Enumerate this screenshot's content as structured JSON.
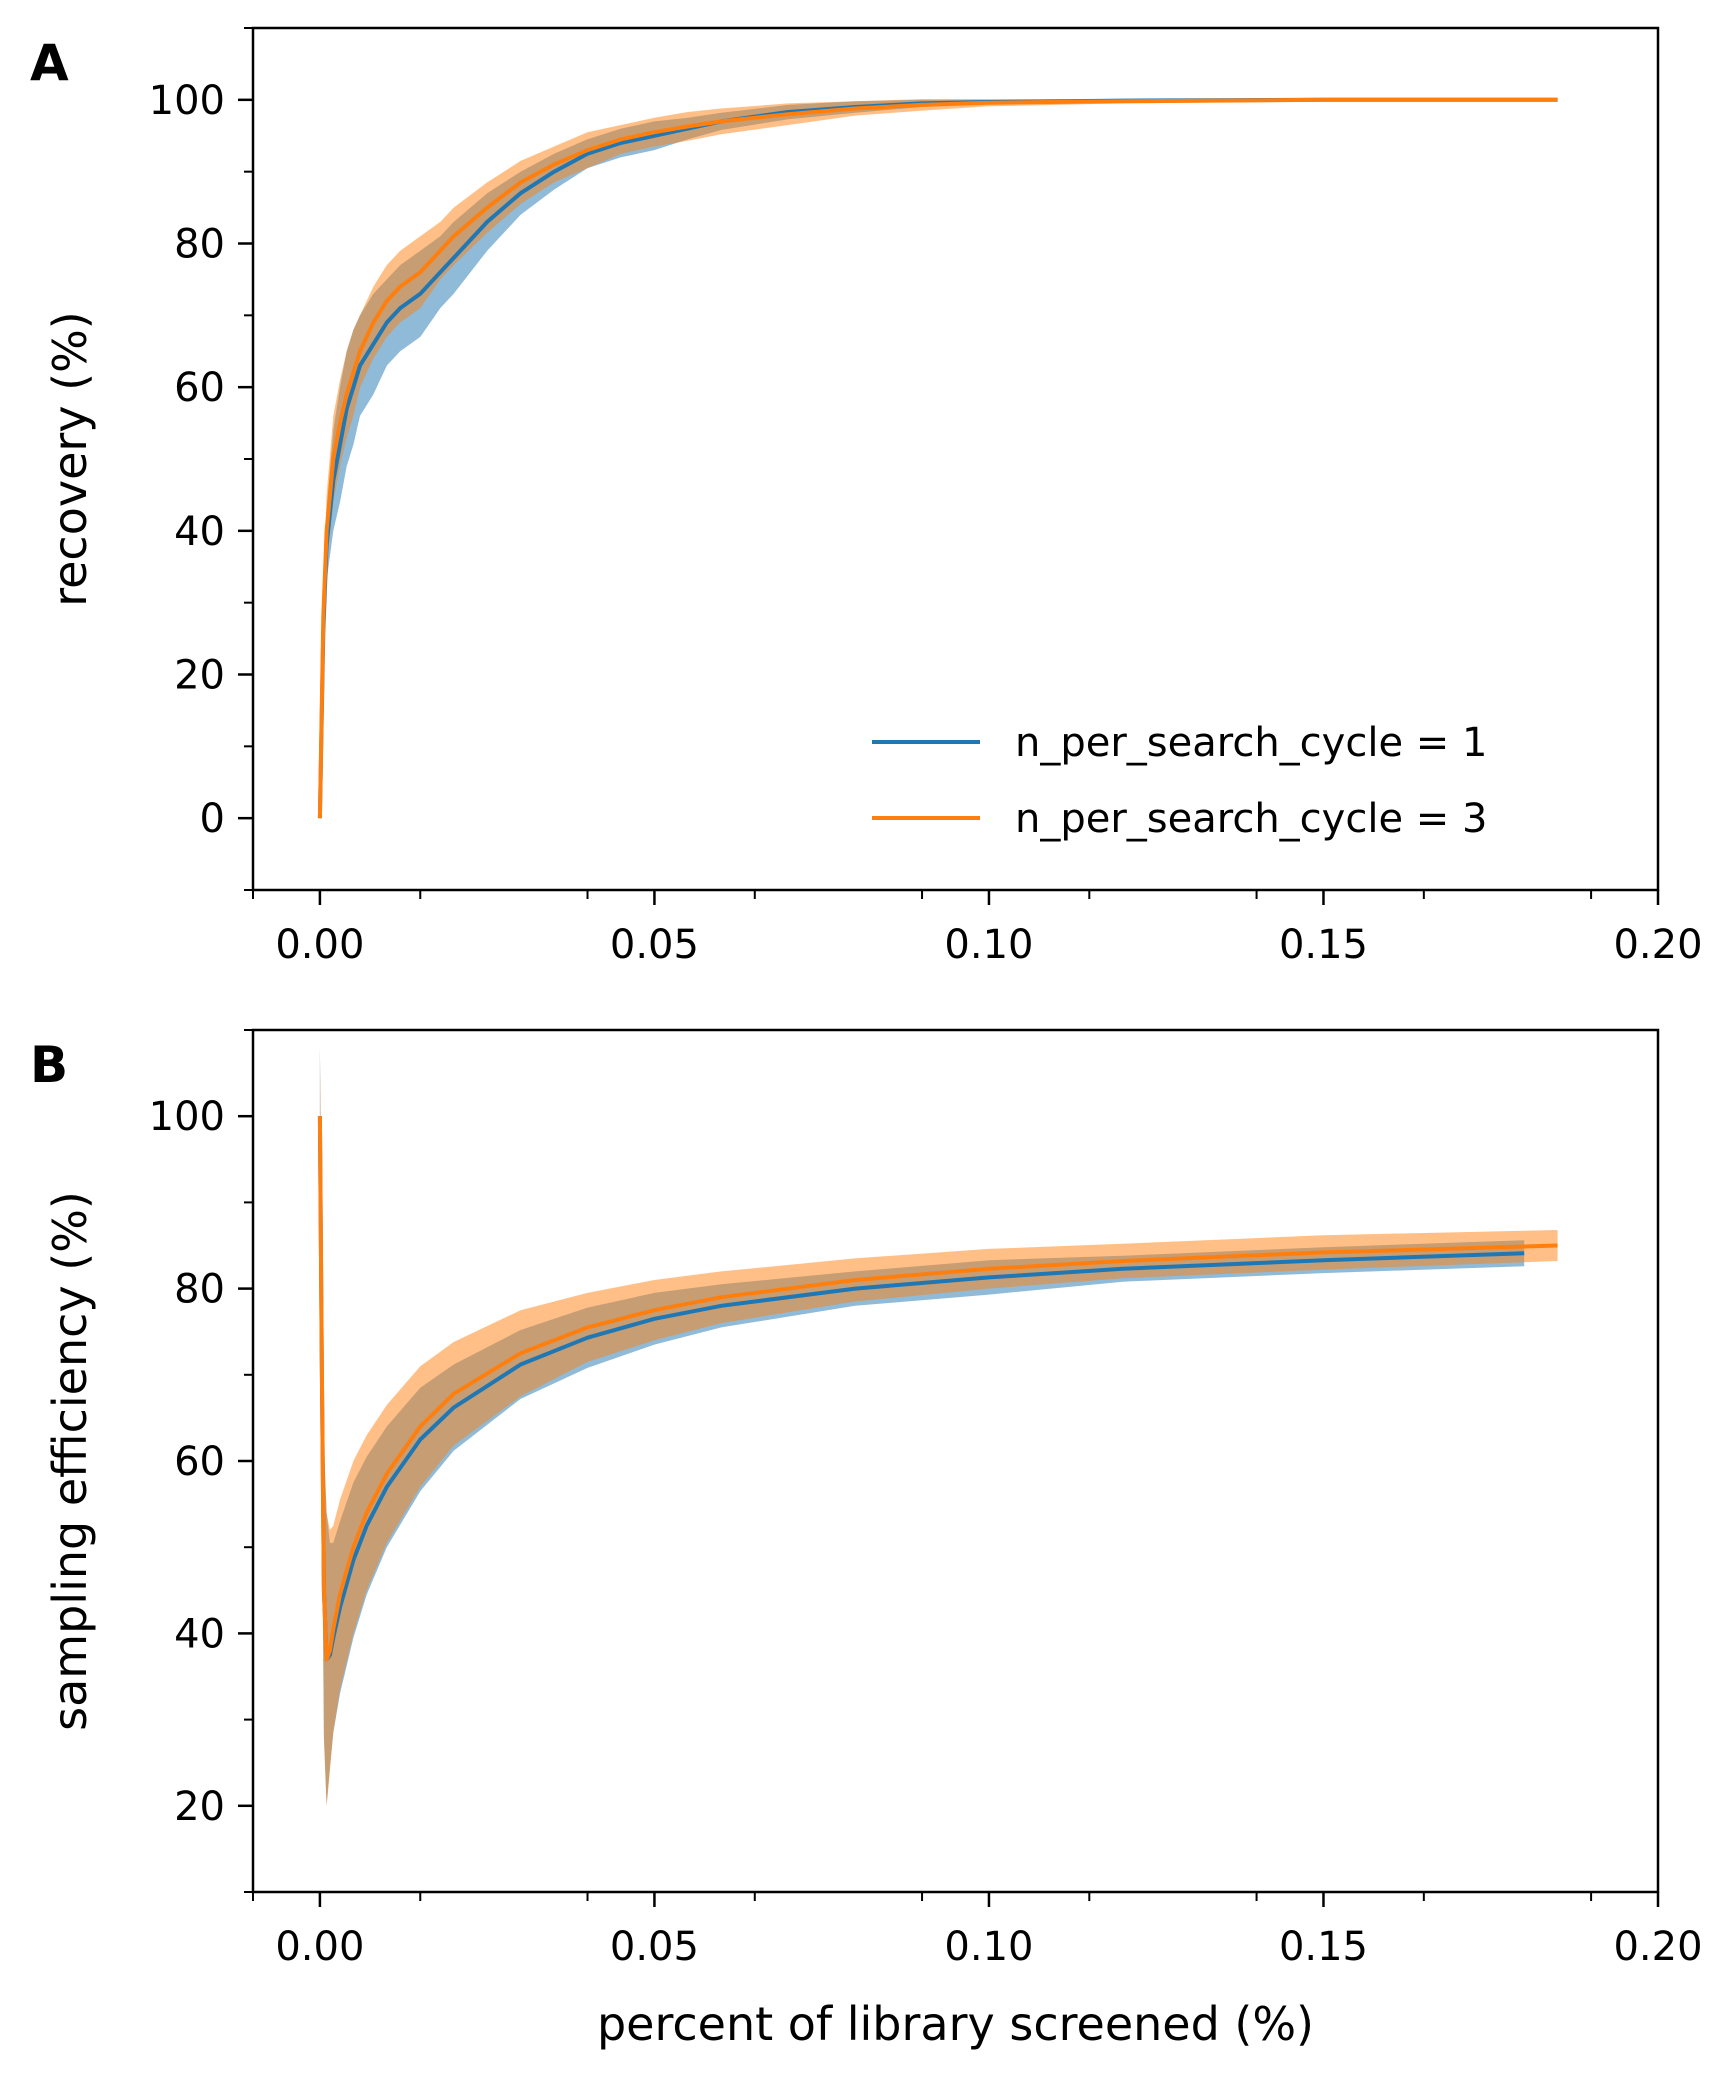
{
  "colors": {
    "series_1": "#1f77b4",
    "series_3": "#ff7f0e"
  },
  "chart_data": [
    {
      "panel_label": "A",
      "type": "line",
      "title": "",
      "xlabel": "",
      "ylabel": "recovery (%)",
      "xlim": [
        -0.01,
        0.2
      ],
      "ylim": [
        -10,
        110
      ],
      "xticks": [
        0.0,
        0.05,
        0.1,
        0.15,
        0.2
      ],
      "xtick_labels": [
        "0.00",
        "0.05",
        "0.10",
        "0.15",
        "0.20"
      ],
      "yticks": [
        0,
        20,
        40,
        60,
        80,
        100
      ],
      "ytick_labels": [
        "0",
        "20",
        "40",
        "60",
        "80",
        "100"
      ],
      "grid": false,
      "legend": {
        "placement": "lower-right",
        "entries": [
          "n_per_search_cycle = 1",
          "n_per_search_cycle = 3"
        ]
      },
      "series": [
        {
          "name": "n_per_search_cycle = 1",
          "color_key": "series_1",
          "x": [
            0.0,
            0.0005,
            0.001,
            0.002,
            0.003,
            0.004,
            0.005,
            0.006,
            0.008,
            0.01,
            0.012,
            0.015,
            0.018,
            0.02,
            0.025,
            0.03,
            0.035,
            0.04,
            0.045,
            0.05,
            0.055,
            0.06,
            0.07,
            0.08,
            0.09,
            0.1,
            0.12,
            0.15,
            0.185
          ],
          "y": [
            0,
            26,
            38,
            47,
            52,
            57,
            60,
            63,
            66,
            69,
            71,
            73,
            76,
            78,
            83,
            87,
            90,
            92.5,
            94,
            95,
            96,
            97,
            98.3,
            99,
            99.5,
            99.7,
            99.9,
            100,
            100
          ],
          "band_halfwidth": [
            0,
            3,
            5,
            7,
            8,
            8,
            8,
            7,
            7,
            6,
            6,
            6,
            5,
            5,
            4,
            3,
            2.5,
            2,
            2,
            2,
            1.5,
            1.2,
            1,
            0.8,
            0.5,
            0.3,
            0.2,
            0.1,
            0
          ]
        },
        {
          "name": "n_per_search_cycle = 3",
          "color_key": "series_3",
          "x": [
            0.0,
            0.0005,
            0.001,
            0.002,
            0.003,
            0.004,
            0.005,
            0.006,
            0.008,
            0.01,
            0.012,
            0.015,
            0.018,
            0.02,
            0.025,
            0.03,
            0.035,
            0.04,
            0.045,
            0.05,
            0.055,
            0.06,
            0.07,
            0.08,
            0.09,
            0.1,
            0.12,
            0.15,
            0.185
          ],
          "y": [
            0,
            28,
            40,
            50,
            55,
            59,
            62,
            65,
            69,
            72,
            74,
            76,
            79,
            81,
            85,
            88.5,
            91,
            93,
            94.5,
            95.5,
            96.3,
            97,
            98,
            98.8,
            99.3,
            99.6,
            99.8,
            100,
            100
          ],
          "band_halfwidth": [
            0,
            3,
            5,
            6,
            6,
            6,
            6,
            5,
            5,
            5,
            5,
            5,
            4,
            4,
            3.5,
            3,
            2.5,
            2.5,
            2,
            2,
            2,
            1.8,
            1.5,
            1,
            0.8,
            0.5,
            0.3,
            0.2,
            0
          ]
        }
      ]
    },
    {
      "panel_label": "B",
      "type": "line",
      "title": "",
      "xlabel": "percent of library screened (%)",
      "ylabel": "sampling efficiency (%)",
      "xlim": [
        -0.01,
        0.2
      ],
      "ylim": [
        10,
        110
      ],
      "xticks": [
        0.0,
        0.05,
        0.1,
        0.15,
        0.2
      ],
      "xtick_labels": [
        "0.00",
        "0.05",
        "0.10",
        "0.15",
        "0.20"
      ],
      "yticks": [
        20,
        40,
        60,
        80,
        100
      ],
      "ytick_labels": [
        "20",
        "40",
        "60",
        "80",
        "100"
      ],
      "grid": false,
      "series": [
        {
          "name": "n_per_search_cycle = 1",
          "color_key": "series_1",
          "x": [
            0.0,
            0.0003,
            0.0006,
            0.001,
            0.0015,
            0.002,
            0.003,
            0.005,
            0.007,
            0.01,
            0.015,
            0.02,
            0.03,
            0.04,
            0.05,
            0.06,
            0.08,
            0.1,
            0.12,
            0.15,
            0.18
          ],
          "y": [
            100,
            70,
            45,
            37,
            37.5,
            39.5,
            43,
            48.5,
            52.5,
            57,
            62.5,
            66.2,
            71.2,
            74.3,
            76.5,
            78,
            80,
            81.3,
            82.3,
            83.3,
            84.1
          ],
          "band_halfwidth": [
            8,
            14,
            17,
            17,
            13,
            11,
            10,
            9,
            8,
            7,
            6,
            5,
            4,
            3.5,
            3,
            2.5,
            2,
            2,
            1.5,
            1.5,
            1.5
          ]
        },
        {
          "name": "n_per_search_cycle = 3",
          "color_key": "series_3",
          "x": [
            0.0,
            0.0003,
            0.0006,
            0.001,
            0.0015,
            0.002,
            0.003,
            0.005,
            0.007,
            0.01,
            0.015,
            0.02,
            0.03,
            0.04,
            0.05,
            0.06,
            0.08,
            0.1,
            0.12,
            0.15,
            0.185
          ],
          "y": [
            100,
            70,
            45,
            37,
            38,
            40.5,
            44.5,
            50,
            54,
            58.5,
            64,
            67.8,
            72.5,
            75.5,
            77.5,
            79,
            81,
            82.3,
            83.2,
            84.2,
            85
          ],
          "band_halfwidth": [
            8,
            14,
            17,
            17,
            14,
            12,
            11,
            10,
            9,
            8,
            7,
            6,
            5,
            4,
            3.5,
            3,
            2.5,
            2.3,
            2,
            2,
            1.8
          ]
        }
      ]
    }
  ]
}
